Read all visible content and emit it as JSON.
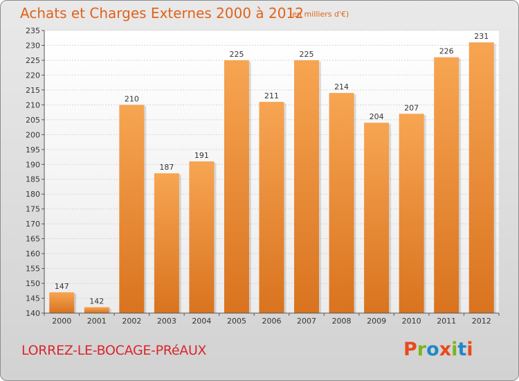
{
  "header": {
    "title": "Achats et Charges Externes 2000 à 2012",
    "unit": "(en milliers d'€)"
  },
  "footer": {
    "commune": "LORREZ-LE-BOCAGE-PRéAUX",
    "logo": "Proxiti"
  },
  "colors": {
    "title": "#e0621a",
    "commune": "#d9262c",
    "bar_light": "#f7a552",
    "bar_dark": "#d9731f",
    "logo_letters": [
      "#e8491d",
      "#7ab51d",
      "#1e88c8",
      "#e8491d",
      "#7ab51d",
      "#1e88c8",
      "#e8491d"
    ]
  },
  "chart_data": {
    "type": "bar",
    "title": "Achats et Charges Externes 2000 à 2012",
    "subtitle": "(en milliers d'€)",
    "categories": [
      "2000",
      "2001",
      "2002",
      "2003",
      "2004",
      "2005",
      "2006",
      "2007",
      "2008",
      "2009",
      "2010",
      "2011",
      "2012"
    ],
    "values": [
      147,
      142,
      210,
      187,
      191,
      225,
      211,
      225,
      214,
      204,
      207,
      226,
      231
    ],
    "ylim": [
      140,
      235
    ],
    "ytick_step": 5,
    "grid": true,
    "xlabel": "",
    "ylabel": ""
  }
}
